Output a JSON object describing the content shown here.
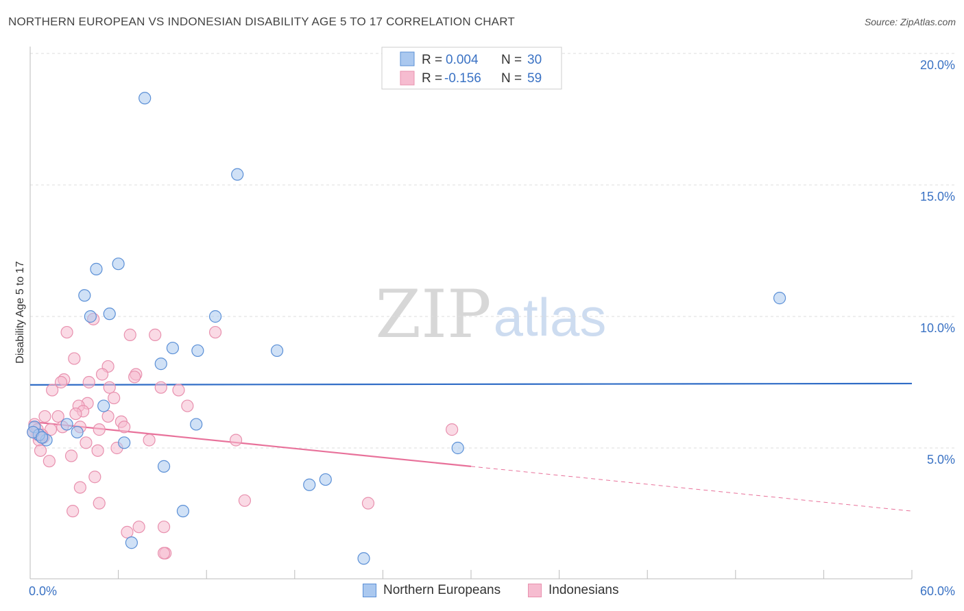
{
  "header": {
    "title": "NORTHERN EUROPEAN VS INDONESIAN DISABILITY AGE 5 TO 17 CORRELATION CHART",
    "source": "Source: ZipAtlas.com"
  },
  "watermark": {
    "zip": "ZIP",
    "atlas": "atlas"
  },
  "legend_stats": [
    {
      "r_label": "R = ",
      "r_value": "0.004",
      "n_label": "N = ",
      "n_value": "30"
    },
    {
      "r_label": "R = ",
      "r_value": "-0.156",
      "n_label": "N = ",
      "n_value": "59"
    }
  ],
  "chart_data": {
    "type": "scatter",
    "title": "NORTHERN EUROPEAN VS INDONESIAN DISABILITY AGE 5 TO 17 CORRELATION CHART",
    "ylabel": "Disability Age 5 to 17",
    "xlabel": "",
    "x_tick_labels": [
      "0.0%",
      "60.0%"
    ],
    "y_tick_labels": [
      "5.0%",
      "10.0%",
      "15.0%",
      "20.0%"
    ],
    "y_ticks": [
      5,
      10,
      15,
      20
    ],
    "xlim": [
      0,
      60
    ],
    "ylim": [
      0,
      20.5
    ],
    "grid": true,
    "legend_position": "top-center",
    "colors": {
      "northern_fill": "#aac8ef",
      "northern_stroke": "#5a8fd6",
      "northern_line": "#2f6cc6",
      "indo_fill": "#f6bcd0",
      "indo_stroke": "#e890ae",
      "indo_line": "#e8719a",
      "tick_text": "#3a72c4",
      "grid": "#dddddd"
    },
    "series": [
      {
        "name": "Northern Europeans",
        "r": 0.004,
        "n": 30,
        "trend": {
          "x0": 0,
          "y0": 7.4,
          "x1": 60,
          "y1": 7.45
        },
        "points": [
          [
            7.8,
            18.3
          ],
          [
            14.1,
            15.4
          ],
          [
            6.0,
            12.0
          ],
          [
            4.5,
            11.8
          ],
          [
            3.7,
            10.8
          ],
          [
            5.4,
            10.1
          ],
          [
            4.1,
            10.0
          ],
          [
            12.6,
            10.0
          ],
          [
            51.0,
            10.7
          ],
          [
            9.7,
            8.8
          ],
          [
            11.4,
            8.7
          ],
          [
            16.8,
            8.7
          ],
          [
            8.9,
            8.2
          ],
          [
            5.0,
            6.6
          ],
          [
            11.3,
            5.9
          ],
          [
            2.5,
            5.9
          ],
          [
            3.2,
            5.6
          ],
          [
            1.1,
            5.3
          ],
          [
            6.4,
            5.2
          ],
          [
            29.1,
            5.0
          ],
          [
            9.1,
            4.3
          ],
          [
            19.0,
            3.6
          ],
          [
            20.1,
            3.8
          ],
          [
            10.4,
            2.6
          ],
          [
            6.9,
            1.4
          ],
          [
            22.7,
            0.8
          ],
          [
            0.3,
            5.8
          ],
          [
            0.6,
            5.5
          ],
          [
            0.2,
            5.6
          ],
          [
            0.8,
            5.4
          ]
        ]
      },
      {
        "name": "Indonesians",
        "r": -0.156,
        "n": 59,
        "trend": {
          "x0": 0,
          "y0": 6.0,
          "x1": 30,
          "y1": 4.3,
          "dash_x1": 60,
          "dash_y1": 2.6
        },
        "points": [
          [
            4.3,
            9.9
          ],
          [
            2.5,
            9.4
          ],
          [
            6.8,
            9.3
          ],
          [
            8.5,
            9.3
          ],
          [
            12.6,
            9.4
          ],
          [
            3.0,
            8.4
          ],
          [
            5.3,
            8.1
          ],
          [
            7.2,
            7.8
          ],
          [
            7.1,
            7.7
          ],
          [
            4.9,
            7.8
          ],
          [
            2.3,
            7.6
          ],
          [
            2.1,
            7.5
          ],
          [
            4.0,
            7.5
          ],
          [
            8.9,
            7.3
          ],
          [
            10.1,
            7.2
          ],
          [
            5.4,
            7.3
          ],
          [
            1.5,
            7.2
          ],
          [
            5.7,
            6.9
          ],
          [
            3.9,
            6.7
          ],
          [
            3.3,
            6.6
          ],
          [
            10.7,
            6.6
          ],
          [
            3.6,
            6.4
          ],
          [
            3.1,
            6.3
          ],
          [
            1.9,
            6.2
          ],
          [
            1.0,
            6.2
          ],
          [
            5.3,
            6.2
          ],
          [
            6.2,
            6.0
          ],
          [
            2.2,
            5.8
          ],
          [
            3.4,
            5.8
          ],
          [
            6.4,
            5.8
          ],
          [
            1.4,
            5.7
          ],
          [
            4.7,
            5.7
          ],
          [
            0.5,
            5.5
          ],
          [
            0.2,
            5.6
          ],
          [
            0.9,
            5.4
          ],
          [
            0.6,
            5.3
          ],
          [
            8.1,
            5.3
          ],
          [
            14.0,
            5.3
          ],
          [
            3.8,
            5.2
          ],
          [
            0.7,
            4.9
          ],
          [
            4.6,
            4.9
          ],
          [
            5.9,
            5.0
          ],
          [
            2.8,
            4.7
          ],
          [
            1.3,
            4.5
          ],
          [
            4.4,
            3.9
          ],
          [
            3.4,
            3.5
          ],
          [
            14.6,
            3.0
          ],
          [
            23.0,
            2.9
          ],
          [
            4.7,
            2.9
          ],
          [
            2.9,
            2.6
          ],
          [
            6.6,
            1.8
          ],
          [
            7.4,
            2.0
          ],
          [
            9.1,
            2.0
          ],
          [
            9.2,
            1.0
          ],
          [
            9.1,
            1.0
          ],
          [
            28.7,
            5.7
          ],
          [
            0.3,
            5.9
          ],
          [
            0.5,
            5.7
          ],
          [
            0.8,
            5.5
          ]
        ]
      }
    ]
  },
  "bottom_legend": [
    "Northern Europeans",
    "Indonesians"
  ]
}
